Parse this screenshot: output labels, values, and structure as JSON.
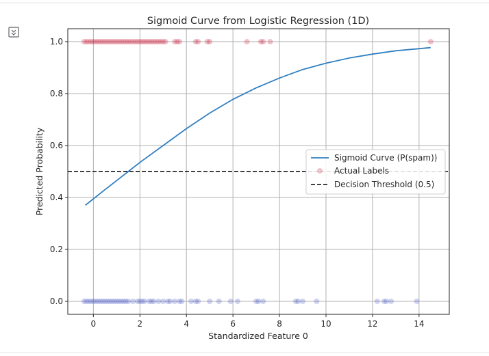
{
  "toolbar": {
    "output_icon": "output-expand-icon"
  },
  "colors": {
    "sigmoid": "#2f7fc1",
    "label_one": "#c8102e",
    "label_zero": "#3f51c2",
    "threshold": "#000000",
    "grid": "#b0b0b0"
  },
  "chart_data": {
    "type": "scatter",
    "title": "Sigmoid Curve from Logistic Regression (1D)",
    "xlabel": "Standardized Feature 0",
    "ylabel": "Predicted Probability",
    "xlim": [
      -1.1,
      15.3
    ],
    "ylim": [
      -0.05,
      1.05
    ],
    "xticks": [
      0,
      2,
      4,
      6,
      8,
      10,
      12,
      14
    ],
    "yticks": [
      0.0,
      0.2,
      0.4,
      0.6,
      0.8,
      1.0
    ],
    "grid": true,
    "legend_position": "center-right",
    "series": [
      {
        "name": "Sigmoid Curve (P(spam))",
        "kind": "line",
        "x": [
          -0.35,
          0.5,
          1.0,
          1.5,
          2.0,
          3.0,
          4.0,
          5.0,
          6.0,
          7.0,
          8.0,
          9.0,
          10.0,
          11.0,
          12.0,
          13.0,
          14.5
        ],
        "y": [
          0.37,
          0.43,
          0.465,
          0.5,
          0.535,
          0.6,
          0.665,
          0.725,
          0.778,
          0.822,
          0.86,
          0.893,
          0.917,
          0.937,
          0.952,
          0.965,
          0.977
        ]
      },
      {
        "name": "Actual Labels",
        "kind": "scatter",
        "points_label_one": [
          -0.4,
          -0.3,
          -0.2,
          -0.1,
          0.0,
          0.1,
          0.2,
          0.3,
          0.4,
          0.5,
          0.6,
          0.7,
          0.8,
          0.9,
          1.0,
          1.1,
          1.2,
          1.3,
          1.4,
          1.5,
          1.6,
          1.7,
          1.8,
          1.9,
          2.0,
          2.1,
          2.2,
          2.3,
          2.4,
          2.5,
          2.6,
          2.7,
          2.8,
          2.9,
          3.0,
          3.1,
          3.5,
          3.6,
          3.7,
          4.4,
          4.5,
          4.9,
          5.0,
          6.6,
          7.2,
          7.3,
          7.6,
          14.5
        ],
        "points_label_zero": [
          -0.4,
          -0.3,
          -0.2,
          -0.1,
          0.0,
          0.1,
          0.2,
          0.3,
          0.4,
          0.5,
          0.6,
          0.7,
          0.8,
          0.9,
          1.0,
          1.1,
          1.2,
          1.3,
          1.4,
          1.5,
          1.7,
          1.9,
          2.0,
          2.1,
          2.2,
          2.4,
          2.5,
          2.6,
          2.8,
          3.0,
          3.2,
          3.3,
          3.5,
          3.7,
          3.8,
          4.2,
          4.4,
          4.5,
          5.0,
          5.4,
          5.9,
          6.2,
          7.0,
          7.1,
          7.3,
          8.7,
          8.8,
          9.0,
          9.6,
          12.2,
          12.5,
          12.6,
          12.8,
          13.9
        ]
      },
      {
        "name": "Decision Threshold (0.5)",
        "kind": "hline",
        "y": 0.5
      }
    ]
  }
}
